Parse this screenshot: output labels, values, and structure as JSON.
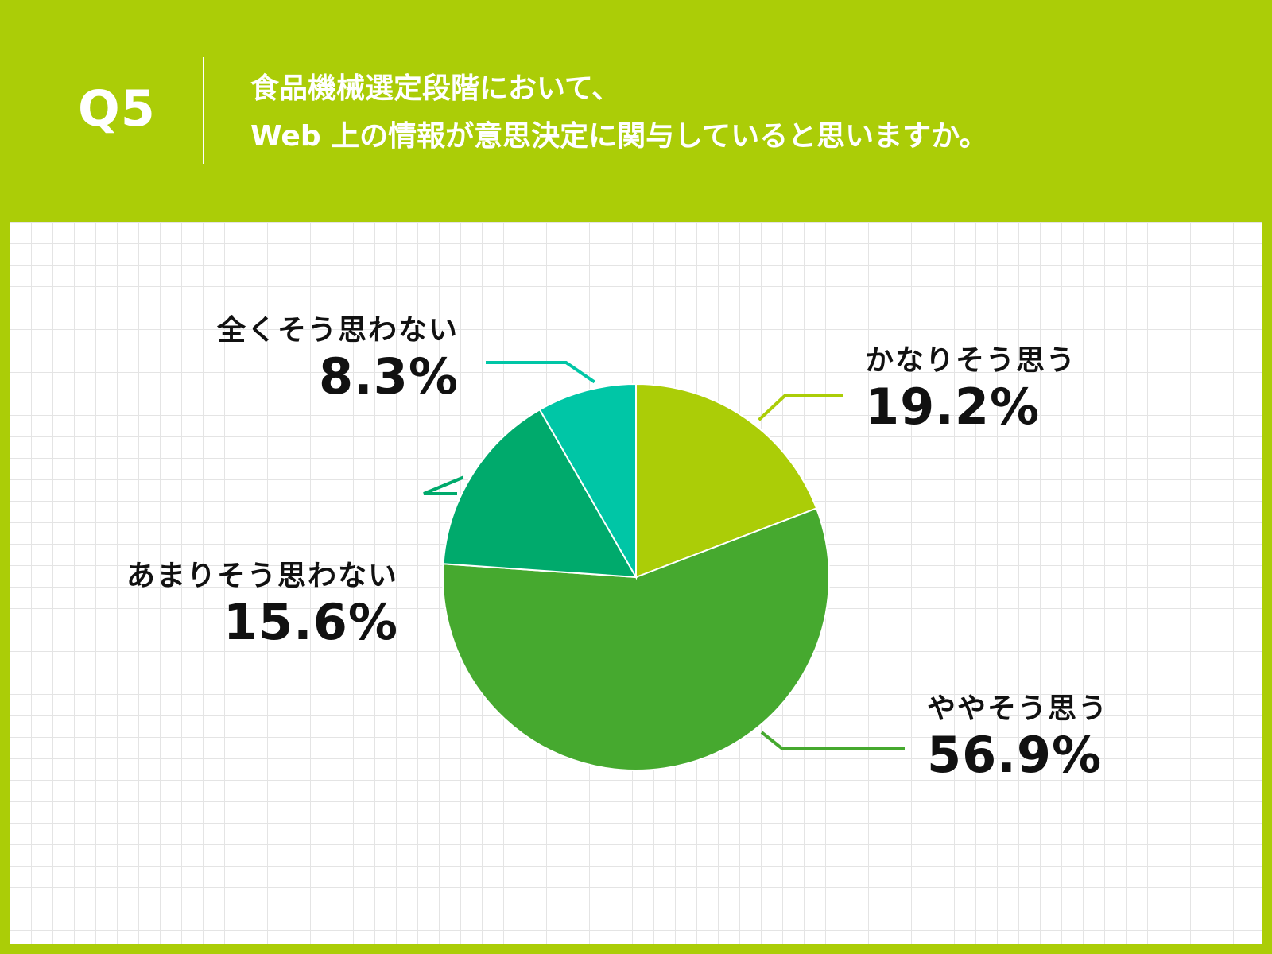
{
  "header": {
    "q_label": "Q5",
    "question_line1": "食品機械選定段階において、",
    "question_line2": "Web 上の情報が意思決定に関与していると思いますか。"
  },
  "colors": {
    "header_bg": "#abcd07",
    "slice_1": "#abcd07",
    "slice_2": "#46a92f",
    "slice_3": "#00aa6c",
    "slice_4": "#00c6a6"
  },
  "chart_data": {
    "type": "pie",
    "start": "top",
    "direction": "clockwise",
    "slices": [
      {
        "label": "かなりそう思う",
        "value": 19.2,
        "value_label": "19.2%"
      },
      {
        "label": "ややそう思う",
        "value": 56.9,
        "value_label": "56.9%"
      },
      {
        "label": "あまりそう思わない",
        "value": 15.6,
        "value_label": "15.6%"
      },
      {
        "label": "全くそう思わない",
        "value": 8.3,
        "value_label": "8.3%"
      }
    ]
  }
}
